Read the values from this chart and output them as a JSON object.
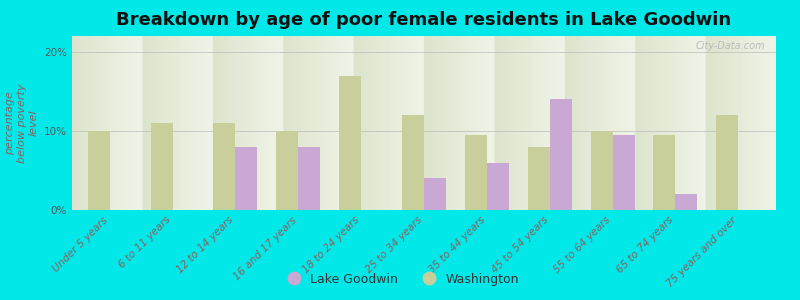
{
  "title": "Breakdown by age of poor female residents in Lake Goodwin",
  "ylabel": "percentage\nbelow poverty\nlevel",
  "categories": [
    "Under 5 years",
    "6 to 11 years",
    "12 to 14 years",
    "16 and 17 years",
    "18 to 24 years",
    "25 to 34 years",
    "35 to 44 years",
    "45 to 54 years",
    "55 to 64 years",
    "65 to 74 years",
    "75 years and over"
  ],
  "lake_goodwin": [
    0,
    0,
    8.0,
    8.0,
    0,
    4.0,
    6.0,
    14.0,
    9.5,
    2.0,
    0
  ],
  "washington": [
    10.0,
    11.0,
    11.0,
    10.0,
    17.0,
    12.0,
    9.5,
    8.0,
    10.0,
    9.5,
    12.0
  ],
  "lake_goodwin_color": "#c9a8d4",
  "washington_color": "#c8cf9a",
  "background_top": "#dde4cc",
  "background_bottom": "#f0f4e8",
  "outer_bg": "#00e8e8",
  "ylim": [
    0,
    22
  ],
  "yticks": [
    0,
    10,
    20
  ],
  "ytick_labels": [
    "0%",
    "10%",
    "20%"
  ],
  "bar_width": 0.35,
  "title_fontsize": 13,
  "axis_label_fontsize": 8,
  "tick_fontsize": 7.5,
  "legend_fontsize": 9,
  "watermark": "City-Data.com"
}
